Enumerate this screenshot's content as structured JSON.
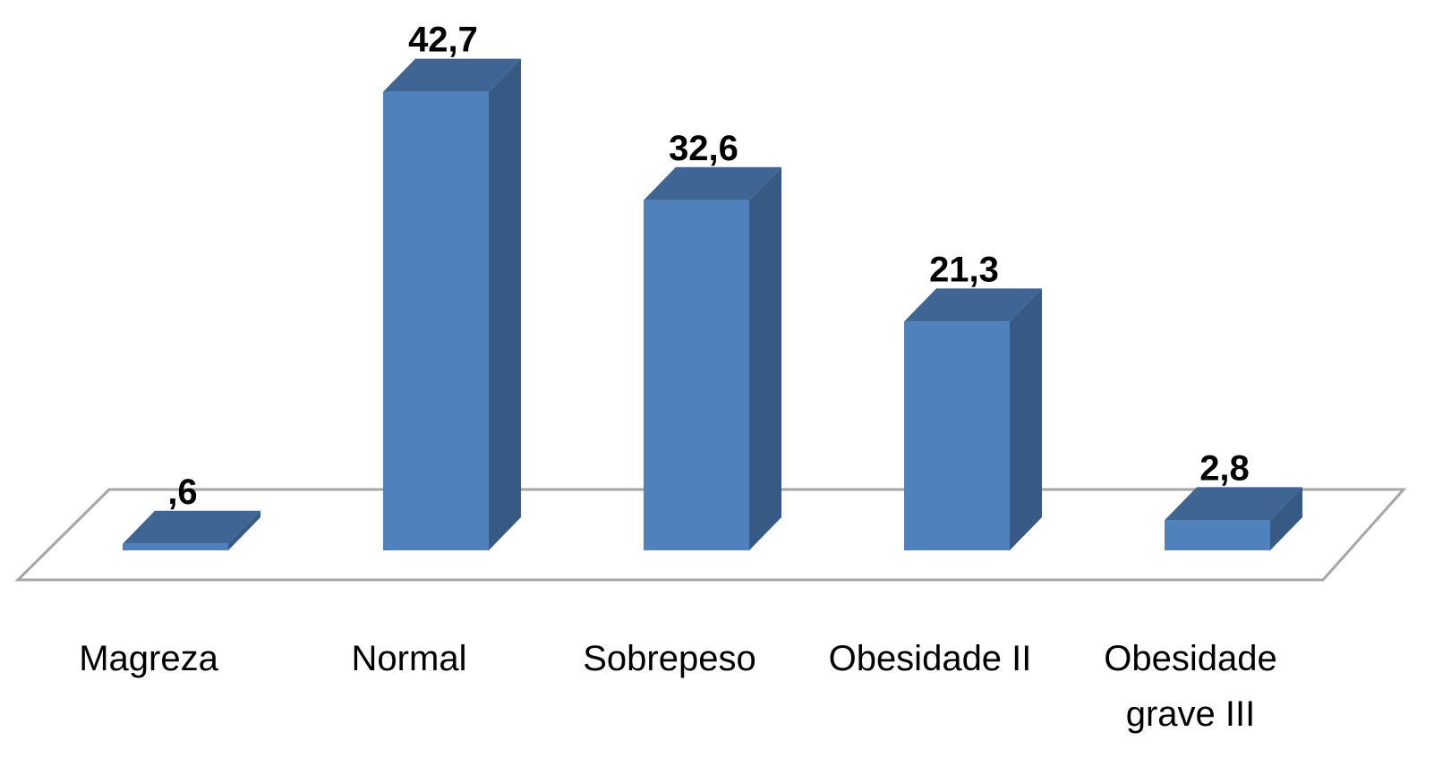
{
  "chart_data": {
    "type": "bar3d",
    "categories": [
      "Magreza",
      "Normal",
      "Sobrepeso",
      "Obesidade II",
      "Obesidade grave III"
    ],
    "values": [
      0.6,
      42.7,
      32.6,
      21.3,
      2.8
    ],
    "value_labels": [
      ",6",
      "42,7",
      "32,6",
      "21,3",
      "2,8"
    ],
    "color": "#4f81bd"
  }
}
